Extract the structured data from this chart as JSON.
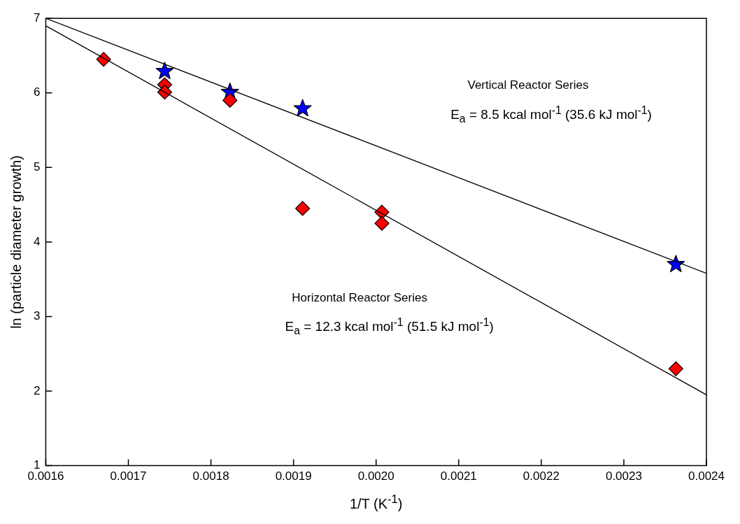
{
  "chart_data": {
    "type": "scatter",
    "xlabel": "1/T (K$^{-1}$)",
    "ylabel": "ln (particle diameter growth)",
    "xlim": [
      0.0016,
      0.0024
    ],
    "xticks": [
      0.0016,
      0.0017,
      0.0018,
      0.0019,
      {
        "value": 0.002,
        "label": "0.0020"
      },
      0.0021,
      0.0022,
      0.0023,
      0.0024
    ],
    "ylim": [
      1,
      7
    ],
    "yticks": [
      1,
      2,
      3,
      4,
      5,
      6,
      7
    ],
    "grid": false,
    "legend": false,
    "series": [
      {
        "type": "line",
        "color": "#000000",
        "marker": "none",
        "line_style": "solid",
        "x": [
          0.0016,
          0.0024
        ],
        "values": [
          7.0,
          3.58
        ]
      },
      {
        "type": "line",
        "color": "#000000",
        "marker": "none",
        "line_style": "solid",
        "x": [
          0.0016,
          0.0024
        ],
        "values": [
          6.9,
          1.95
        ]
      },
      {
        "type": "scatter",
        "color": "#ff0000",
        "marker": "diamond",
        "x": [
          0.00167,
          0.001744,
          0.001744,
          0.001823,
          0.001911,
          0.002007,
          0.002007,
          0.002363
        ],
        "values": [
          6.45,
          6.11,
          6.01,
          5.9,
          4.45,
          4.4,
          4.25,
          2.3
        ]
      },
      {
        "type": "scatter",
        "color": "#0000ff",
        "marker": "star",
        "x": [
          0.001744,
          0.001823,
          0.001911,
          0.002363
        ],
        "values": [
          6.29,
          6.01,
          5.79,
          3.7
        ]
      }
    ],
    "annotations": [
      "Vertical Reactor Series",
      "E$_{a}$ = 8.5 kcal mol$^{-1}$ (35.6 kJ mol$^{-1}$)",
      "Horizontal Reactor Series",
      "E$_{a}$ = 12.3 kcal mol$^{-1}$ (51.5 kJ mol$^{-1}$)"
    ]
  }
}
